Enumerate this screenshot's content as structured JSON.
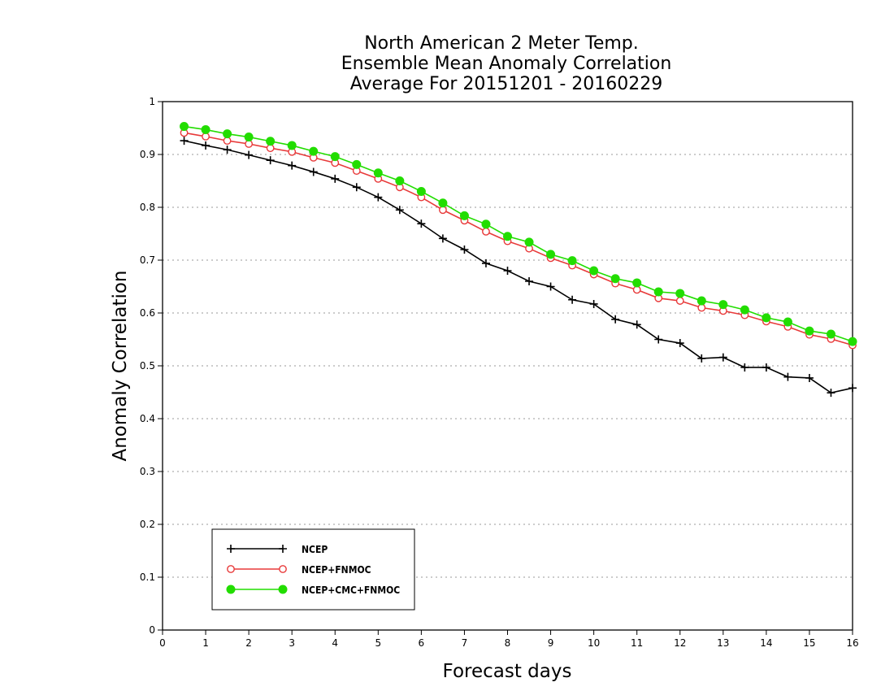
{
  "chart_data": {
    "type": "line",
    "title": [
      "North American 2 Meter Temp.",
      "Ensemble Mean Anomaly Correlation",
      "Average For 20151201 - 20160229"
    ],
    "xlabel": "Forecast days",
    "ylabel": "Anomaly Correlation",
    "xlim": [
      0,
      16
    ],
    "ylim": [
      0,
      1
    ],
    "xticks": [
      "0",
      "1",
      "2",
      "3",
      "4",
      "5",
      "6",
      "7",
      "8",
      "9",
      "10",
      "11",
      "12",
      "13",
      "14",
      "15",
      "16"
    ],
    "yticks": [
      "0",
      "0.1",
      "0.2",
      "0.3",
      "0.4",
      "0.5",
      "0.6",
      "0.7",
      "0.8",
      "0.9",
      "1"
    ],
    "grid": true,
    "legend_position": "bottom-left",
    "x": [
      0.5,
      1,
      1.5,
      2,
      2.5,
      3,
      3.5,
      4,
      4.5,
      5,
      5.5,
      6,
      6.5,
      7,
      7.5,
      8,
      8.5,
      9,
      9.5,
      10,
      10.5,
      11,
      11.5,
      12,
      12.5,
      13,
      13.5,
      14,
      14.5,
      15,
      15.5,
      16
    ],
    "series": [
      {
        "name": "NCEP",
        "color": "#000000",
        "marker": "plus",
        "values": [
          0.926,
          0.917,
          0.909,
          0.899,
          0.889,
          0.879,
          0.867,
          0.854,
          0.838,
          0.819,
          0.795,
          0.769,
          0.741,
          0.72,
          0.694,
          0.68,
          0.66,
          0.65,
          0.625,
          0.617,
          0.588,
          0.578,
          0.55,
          0.543,
          0.514,
          0.516,
          0.497,
          0.497,
          0.479,
          0.477,
          0.449,
          0.458
        ]
      },
      {
        "name": "NCEP+FNMOC",
        "color": "#e83a3a",
        "marker": "open-circle",
        "values": [
          0.941,
          0.934,
          0.926,
          0.92,
          0.912,
          0.905,
          0.894,
          0.884,
          0.869,
          0.854,
          0.838,
          0.819,
          0.795,
          0.775,
          0.754,
          0.736,
          0.722,
          0.704,
          0.69,
          0.673,
          0.656,
          0.644,
          0.628,
          0.623,
          0.61,
          0.604,
          0.596,
          0.584,
          0.574,
          0.559,
          0.551,
          0.539
        ]
      },
      {
        "name": "NCEP+CMC+FNMOC",
        "color": "#22dd00",
        "marker": "filled-circle",
        "values": [
          0.953,
          0.947,
          0.939,
          0.933,
          0.925,
          0.917,
          0.906,
          0.896,
          0.881,
          0.865,
          0.85,
          0.83,
          0.808,
          0.784,
          0.768,
          0.745,
          0.734,
          0.711,
          0.699,
          0.68,
          0.665,
          0.657,
          0.64,
          0.637,
          0.623,
          0.616,
          0.606,
          0.591,
          0.583,
          0.566,
          0.56,
          0.546
        ]
      }
    ]
  }
}
